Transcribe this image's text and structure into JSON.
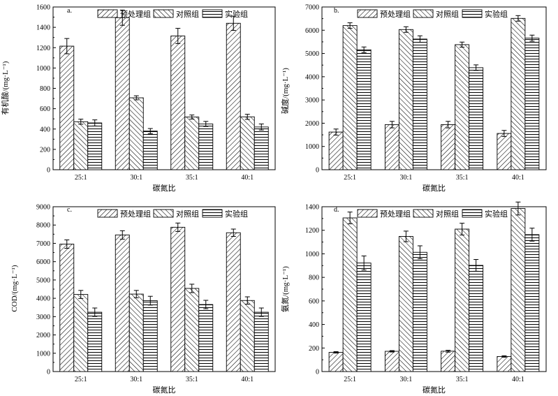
{
  "chart_data": [
    {
      "type": "bar",
      "panel_label": "a.",
      "categories": [
        "25:1",
        "30:1",
        "35:1",
        "40:1"
      ],
      "series": [
        {
          "name": "预处理组",
          "pattern": "diag-forward",
          "values": [
            1215,
            1495,
            1315,
            1440
          ],
          "errors": [
            75,
            75,
            75,
            70
          ]
        },
        {
          "name": "对照组",
          "pattern": "diag-back",
          "values": [
            472,
            707,
            518,
            520
          ],
          "errors": [
            25,
            20,
            20,
            25
          ]
        },
        {
          "name": "实验组",
          "pattern": "horizontal",
          "values": [
            460,
            380,
            450,
            420
          ],
          "errors": [
            30,
            25,
            25,
            30
          ]
        }
      ],
      "xlabel": "碳氮比",
      "ylabel": "有机酸/(mg·L⁻¹)",
      "ylim": [
        0,
        1600
      ],
      "yticks": [
        0,
        200,
        400,
        600,
        800,
        1000,
        1200,
        1400,
        1600
      ]
    },
    {
      "type": "bar",
      "panel_label": "b.",
      "categories": [
        "25:1",
        "30:1",
        "35:1",
        "40:1"
      ],
      "series": [
        {
          "name": "预处理组",
          "pattern": "diag-forward",
          "values": [
            1620,
            1940,
            1940,
            1560
          ],
          "errors": [
            130,
            140,
            140,
            130
          ]
        },
        {
          "name": "对照组",
          "pattern": "diag-back",
          "values": [
            6200,
            6030,
            5380,
            6510
          ],
          "errors": [
            120,
            120,
            110,
            120
          ]
        },
        {
          "name": "实验组",
          "pattern": "horizontal",
          "values": [
            5160,
            5620,
            4390,
            5660
          ],
          "errors": [
            120,
            140,
            120,
            130
          ]
        }
      ],
      "xlabel": "碳氮比",
      "ylabel": "碱度/(mg·L⁻¹)",
      "ylim": [
        0,
        7000
      ],
      "yticks": [
        0,
        1000,
        2000,
        3000,
        4000,
        5000,
        6000,
        7000
      ]
    },
    {
      "type": "bar",
      "panel_label": "c.",
      "categories": [
        "25:1",
        "30:1",
        "35:1",
        "40:1"
      ],
      "series": [
        {
          "name": "预处理组",
          "pattern": "diag-forward",
          "values": [
            6960,
            7460,
            7880,
            7580
          ],
          "errors": [
            230,
            230,
            230,
            200
          ]
        },
        {
          "name": "对照组",
          "pattern": "diag-back",
          "values": [
            4210,
            4230,
            4540,
            3880
          ],
          "errors": [
            220,
            200,
            230,
            200
          ]
        },
        {
          "name": "实验组",
          "pattern": "horizontal",
          "values": [
            3240,
            3870,
            3660,
            3240
          ],
          "errors": [
            230,
            240,
            230,
            230
          ]
        }
      ],
      "xlabel": "碳氮比",
      "ylabel": "COD/(mg·L⁻¹)",
      "ylim": [
        0,
        9000
      ],
      "yticks": [
        0,
        1000,
        2000,
        3000,
        4000,
        5000,
        6000,
        7000,
        8000,
        9000
      ]
    },
    {
      "type": "bar",
      "panel_label": "d.",
      "categories": [
        "25:1",
        "30:1",
        "35:1",
        "40:1"
      ],
      "series": [
        {
          "name": "预处理组",
          "pattern": "diag-forward",
          "values": [
            163,
            172,
            173,
            128
          ],
          "errors": [
            6,
            6,
            8,
            6
          ]
        },
        {
          "name": "对照组",
          "pattern": "diag-back",
          "values": [
            1305,
            1148,
            1210,
            1385
          ],
          "errors": [
            50,
            45,
            50,
            55
          ]
        },
        {
          "name": "实验组",
          "pattern": "horizontal",
          "values": [
            922,
            1013,
            902,
            1163
          ],
          "errors": [
            60,
            55,
            50,
            55
          ]
        }
      ],
      "xlabel": "碳氮比",
      "ylabel": "氨氮/(mg·L⁻¹)",
      "ylim": [
        0,
        1400
      ],
      "yticks": [
        0,
        200,
        400,
        600,
        800,
        1000,
        1200,
        1400
      ]
    }
  ]
}
